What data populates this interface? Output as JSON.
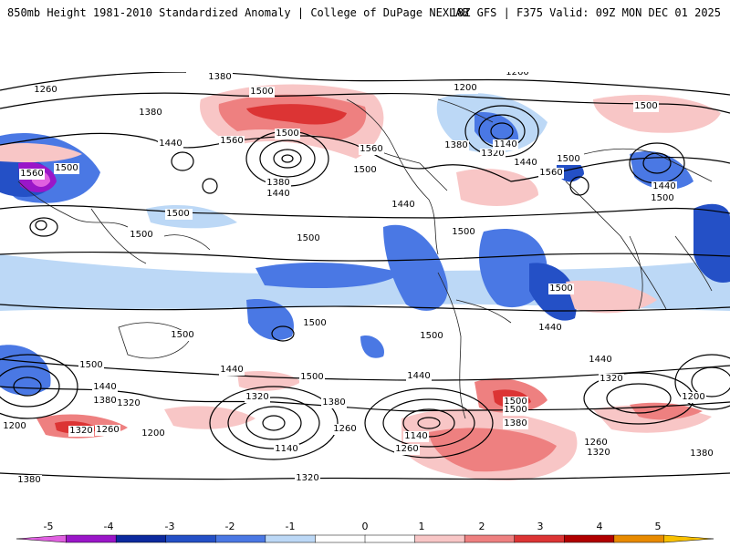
{
  "header": {
    "title": "850mb Height 1981-2010 Standardized Anomaly | College of DuPage NEXLAB",
    "run_info": "18Z GFS | F375 Valid: 09Z MON DEC 01 2025"
  },
  "map": {
    "projection": "global-cylindrical",
    "contour_labels": [
      {
        "text": "1320"
      },
      {
        "text": "1380"
      },
      {
        "text": "1260"
      },
      {
        "text": "1500"
      },
      {
        "text": "1200"
      },
      {
        "text": "1380"
      },
      {
        "text": "1440"
      },
      {
        "text": "1560"
      },
      {
        "text": "1500"
      },
      {
        "text": "1380"
      },
      {
        "text": "1440"
      },
      {
        "text": "1560"
      },
      {
        "text": "1500"
      },
      {
        "text": "1380"
      },
      {
        "text": "1260"
      },
      {
        "text": "1320"
      },
      {
        "text": "1140"
      },
      {
        "text": "1440"
      },
      {
        "text": "1560"
      },
      {
        "text": "1500"
      },
      {
        "text": "1500"
      },
      {
        "text": "1440"
      },
      {
        "text": "1500"
      },
      {
        "text": "1500"
      },
      {
        "text": "1500"
      },
      {
        "text": "1500"
      },
      {
        "text": "1560"
      },
      {
        "text": "1500"
      },
      {
        "text": "1500"
      },
      {
        "text": "1500"
      },
      {
        "text": "1440"
      },
      {
        "text": "1500"
      },
      {
        "text": "1500"
      },
      {
        "text": "1500"
      },
      {
        "text": "1500"
      },
      {
        "text": "1440"
      },
      {
        "text": "1440"
      },
      {
        "text": "1500"
      },
      {
        "text": "1440"
      },
      {
        "text": "1380"
      },
      {
        "text": "1320"
      },
      {
        "text": "1440"
      },
      {
        "text": "1500"
      },
      {
        "text": "1320"
      },
      {
        "text": "1380"
      },
      {
        "text": "1440"
      },
      {
        "text": "1500"
      },
      {
        "text": "1320"
      },
      {
        "text": "1200"
      },
      {
        "text": "1200"
      },
      {
        "text": "1320"
      },
      {
        "text": "1260"
      },
      {
        "text": "1260"
      },
      {
        "text": "1200"
      },
      {
        "text": "1140"
      },
      {
        "text": "1140"
      },
      {
        "text": "1260"
      },
      {
        "text": "1500"
      },
      {
        "text": "1380"
      },
      {
        "text": "1260"
      },
      {
        "text": "1320"
      },
      {
        "text": "1380"
      },
      {
        "text": "1380"
      },
      {
        "text": "1320"
      }
    ]
  },
  "colorbar": {
    "ticks": [
      "-5",
      "-4",
      "-3",
      "-2",
      "-1",
      "0",
      "1",
      "2",
      "3",
      "4",
      "5"
    ],
    "colors": [
      "#e060e0",
      "#9a16c8",
      "#0c2a9e",
      "#2450c6",
      "#4a78e4",
      "#bcd8f6",
      "#ffffff",
      "#ffffff",
      "#f8c6c6",
      "#ee8080",
      "#dc3434",
      "#b00000",
      "#e88a00",
      "#f8c000"
    ]
  }
}
